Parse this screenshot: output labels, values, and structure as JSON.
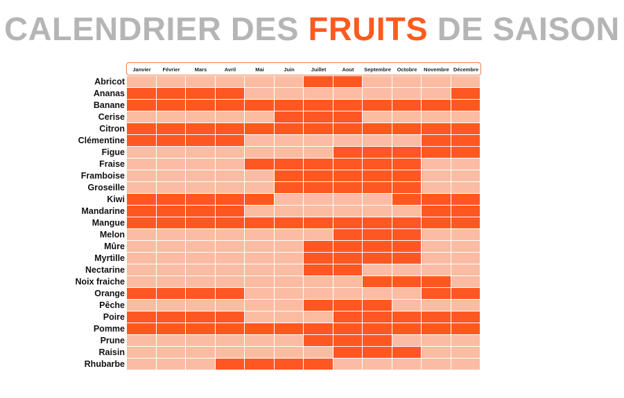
{
  "title": {
    "part1": "CALENDRIER DES ",
    "highlight": "FRUITS",
    "part2": " DE SAISON"
  },
  "colors": {
    "in_season": "#ff5722",
    "off_season": "#fbbca3",
    "title_gray": "#b5b5b5",
    "title_accent": "#ff5a1e"
  },
  "chart_data": {
    "type": "heatmap",
    "title": "CALENDRIER DES FRUITS DE SAISON",
    "months": [
      "Janvier",
      "Février",
      "Mars",
      "Avril",
      "Mai",
      "Juin",
      "Juillet",
      "Aout",
      "Septembre",
      "Octobre",
      "Novembre",
      "Décembre"
    ],
    "fruits": [
      {
        "name": "Abricot",
        "season": [
          0,
          0,
          0,
          0,
          0,
          0,
          1,
          1,
          0,
          0,
          0,
          0
        ]
      },
      {
        "name": "Ananas",
        "season": [
          1,
          1,
          1,
          1,
          0,
          0,
          0,
          0,
          0,
          0,
          0,
          1
        ]
      },
      {
        "name": "Banane",
        "season": [
          1,
          1,
          1,
          1,
          1,
          1,
          1,
          1,
          1,
          1,
          1,
          1
        ]
      },
      {
        "name": "Cerise",
        "season": [
          0,
          0,
          0,
          0,
          0,
          1,
          1,
          1,
          0,
          0,
          0,
          0
        ]
      },
      {
        "name": "Citron",
        "season": [
          1,
          1,
          1,
          1,
          1,
          1,
          1,
          1,
          1,
          1,
          1,
          1
        ]
      },
      {
        "name": "Clémentine",
        "season": [
          1,
          1,
          1,
          1,
          0,
          0,
          0,
          0,
          0,
          0,
          1,
          1
        ]
      },
      {
        "name": "Figue",
        "season": [
          0,
          0,
          0,
          0,
          0,
          0,
          0,
          1,
          1,
          1,
          1,
          1
        ]
      },
      {
        "name": "Fraise",
        "season": [
          0,
          0,
          0,
          0,
          1,
          1,
          1,
          1,
          1,
          1,
          0,
          0
        ]
      },
      {
        "name": "Framboise",
        "season": [
          0,
          0,
          0,
          0,
          0,
          1,
          1,
          1,
          1,
          1,
          0,
          0
        ]
      },
      {
        "name": "Groseille",
        "season": [
          0,
          0,
          0,
          0,
          0,
          1,
          1,
          1,
          1,
          1,
          0,
          0
        ]
      },
      {
        "name": "Kiwi",
        "season": [
          1,
          1,
          1,
          1,
          1,
          0,
          0,
          0,
          0,
          1,
          1,
          1
        ]
      },
      {
        "name": "Mandarine",
        "season": [
          1,
          1,
          1,
          1,
          0,
          0,
          0,
          0,
          0,
          0,
          1,
          1
        ]
      },
      {
        "name": "Mangue",
        "season": [
          1,
          1,
          1,
          1,
          1,
          1,
          1,
          1,
          1,
          1,
          1,
          1
        ]
      },
      {
        "name": "Melon",
        "season": [
          0,
          0,
          0,
          0,
          0,
          0,
          0,
          1,
          1,
          1,
          0,
          0
        ]
      },
      {
        "name": "Mûre",
        "season": [
          0,
          0,
          0,
          0,
          0,
          0,
          1,
          1,
          1,
          1,
          0,
          0
        ]
      },
      {
        "name": "Myrtille",
        "season": [
          0,
          0,
          0,
          0,
          0,
          0,
          1,
          1,
          1,
          1,
          0,
          0
        ]
      },
      {
        "name": "Nectarine",
        "season": [
          0,
          0,
          0,
          0,
          0,
          0,
          1,
          1,
          0,
          0,
          0,
          0
        ]
      },
      {
        "name": "Noix fraiche",
        "season": [
          0,
          0,
          0,
          0,
          0,
          0,
          0,
          0,
          1,
          1,
          1,
          0
        ]
      },
      {
        "name": "Orange",
        "season": [
          1,
          1,
          1,
          1,
          0,
          0,
          0,
          0,
          0,
          0,
          1,
          1
        ]
      },
      {
        "name": "Pêche",
        "season": [
          0,
          0,
          0,
          0,
          0,
          0,
          1,
          1,
          1,
          0,
          0,
          0
        ]
      },
      {
        "name": "Poire",
        "season": [
          1,
          1,
          1,
          1,
          0,
          0,
          0,
          1,
          1,
          1,
          1,
          1
        ]
      },
      {
        "name": "Pomme",
        "season": [
          1,
          1,
          1,
          1,
          1,
          1,
          1,
          1,
          1,
          1,
          1,
          1
        ]
      },
      {
        "name": "Prune",
        "season": [
          0,
          0,
          0,
          0,
          0,
          0,
          1,
          1,
          1,
          0,
          0,
          0
        ]
      },
      {
        "name": "Raisin",
        "season": [
          0,
          0,
          0,
          0,
          0,
          0,
          0,
          1,
          1,
          1,
          0,
          0
        ]
      },
      {
        "name": "Rhubarbe",
        "season": [
          0,
          0,
          0,
          1,
          1,
          1,
          1,
          0,
          0,
          0,
          0,
          0
        ]
      }
    ]
  }
}
